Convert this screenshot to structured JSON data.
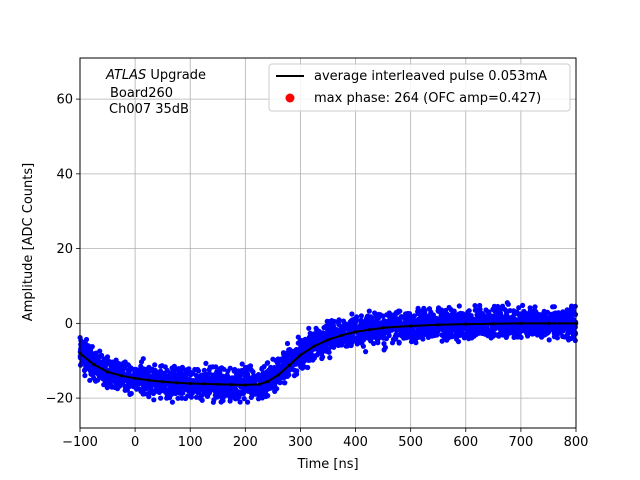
{
  "chart_data": {
    "type": "scatter",
    "title": "",
    "xlabel": "Time [ns]",
    "ylabel": "Amplitude [ADC Counts]",
    "xlim": [
      -100,
      800
    ],
    "ylim": [
      -28,
      71
    ],
    "xticks": [
      -100,
      0,
      100,
      200,
      300,
      400,
      500,
      600,
      700,
      800
    ],
    "yticks": [
      -20,
      0,
      20,
      40,
      60
    ],
    "grid": true,
    "legend_position": "top-right",
    "annotation": {
      "line1_italic": "ATLAS",
      "line1_rest": " Upgrade",
      "line2": "Board260",
      "line3": "Ch007 35dB"
    },
    "series": [
      {
        "name": "",
        "kind": "scatter",
        "color": "#0000ff",
        "description_band": {
          "x": [
            -100,
            -50,
            0,
            50,
            100,
            150,
            200,
            230,
            250,
            300,
            350,
            400,
            450,
            500,
            600,
            700,
            800
          ],
          "center": [
            -8,
            -13,
            -14.5,
            -15.5,
            -16,
            -16.3,
            -16.5,
            -16,
            -14,
            -8,
            -4,
            -2,
            -1,
            -0.5,
            0,
            0,
            0
          ],
          "spread": 4.5
        }
      },
      {
        "name": "average interleaved pulse 0.053mA",
        "kind": "line",
        "color": "#000000",
        "x": [
          -100,
          -75,
          -50,
          -25,
          0,
          25,
          50,
          75,
          100,
          125,
          150,
          175,
          200,
          225,
          240,
          260,
          280,
          300,
          325,
          350,
          375,
          400,
          425,
          450,
          500,
          550,
          600,
          650,
          700,
          750,
          800
        ],
        "y": [
          -8,
          -11,
          -13,
          -14,
          -14.7,
          -15.2,
          -15.6,
          -15.9,
          -16.1,
          -16.2,
          -16.3,
          -16.4,
          -16.5,
          -16.3,
          -15.6,
          -13.8,
          -11.2,
          -8.5,
          -6.1,
          -4.4,
          -3.2,
          -2.3,
          -1.7,
          -1.2,
          -0.7,
          -0.4,
          -0.2,
          -0.1,
          0,
          0,
          0
        ]
      },
      {
        "name": "max phase: 264 (OFC amp=0.427)",
        "kind": "marker",
        "color": "#ff0000",
        "x": [],
        "y": []
      }
    ]
  }
}
